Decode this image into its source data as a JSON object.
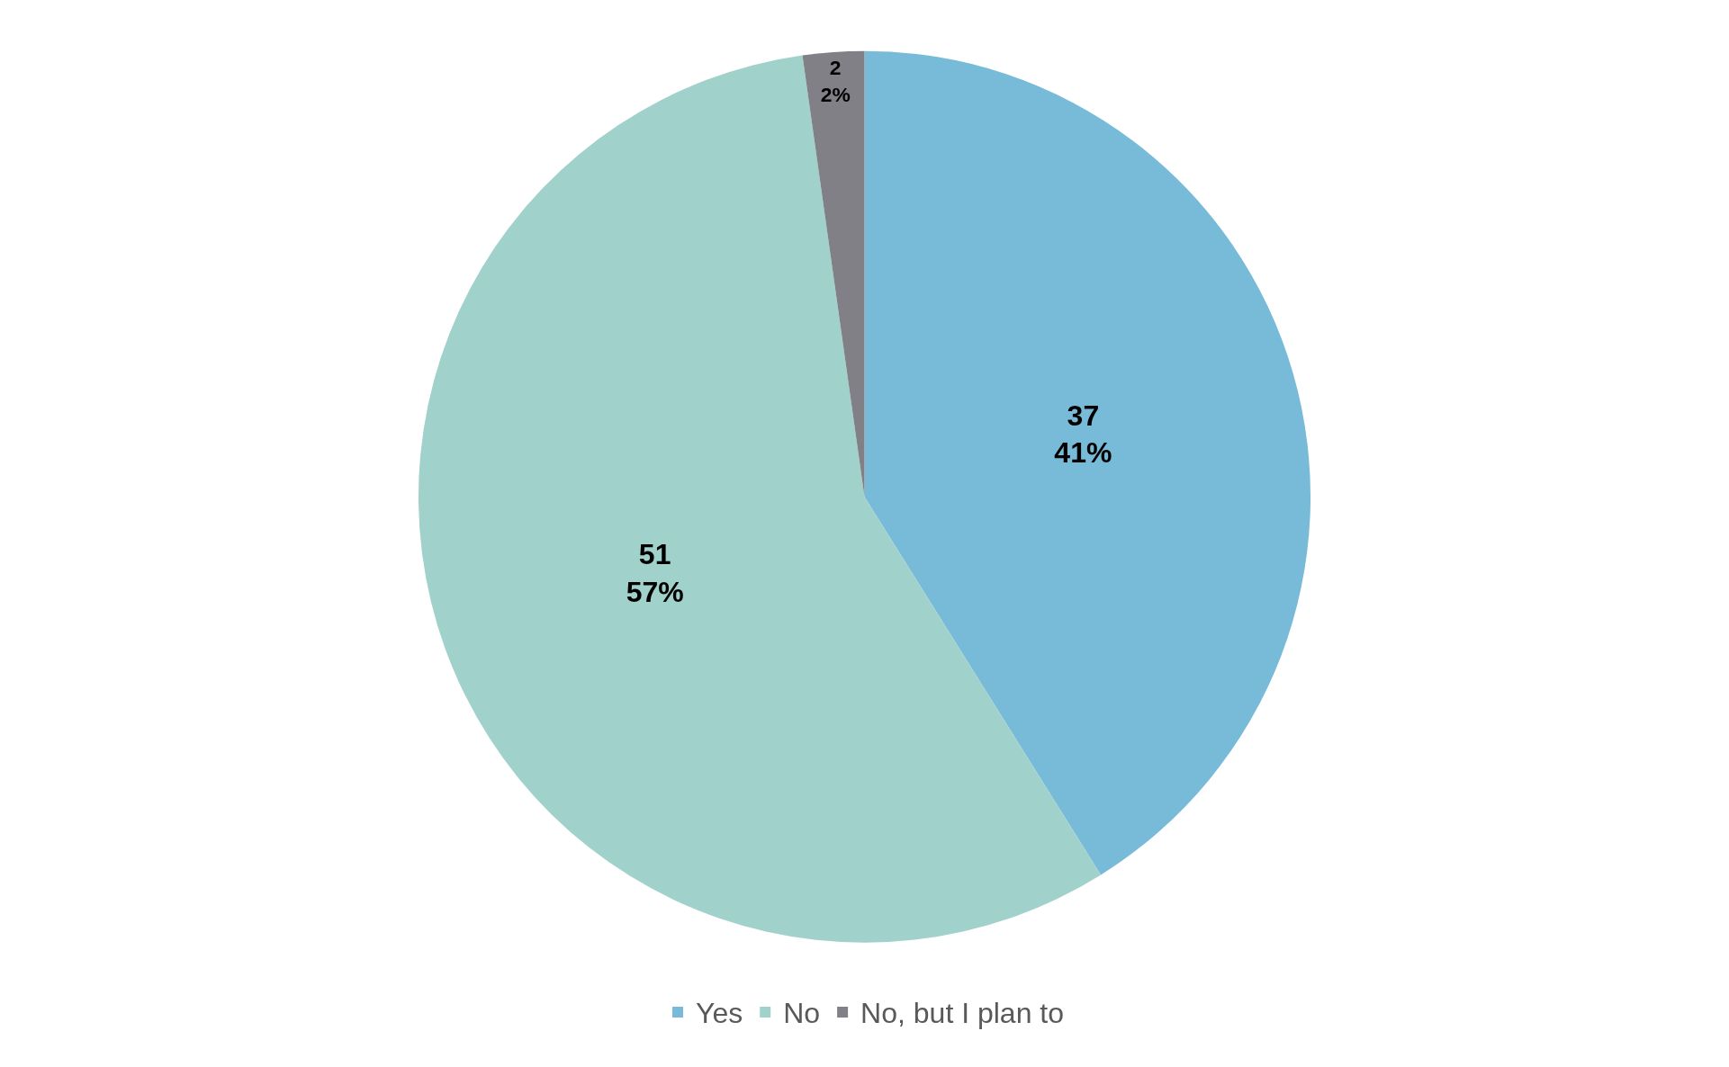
{
  "chart_data": {
    "type": "pie",
    "categories": [
      "Yes",
      "No",
      "No, but I plan to"
    ],
    "values": [
      37,
      51,
      2
    ],
    "colors": [
      "#77bbd9",
      "#a1d1cb",
      "#808086"
    ],
    "value_labels": [
      "37\n41%",
      "51\n57%",
      "2\n2%"
    ],
    "legend": "bottom"
  }
}
